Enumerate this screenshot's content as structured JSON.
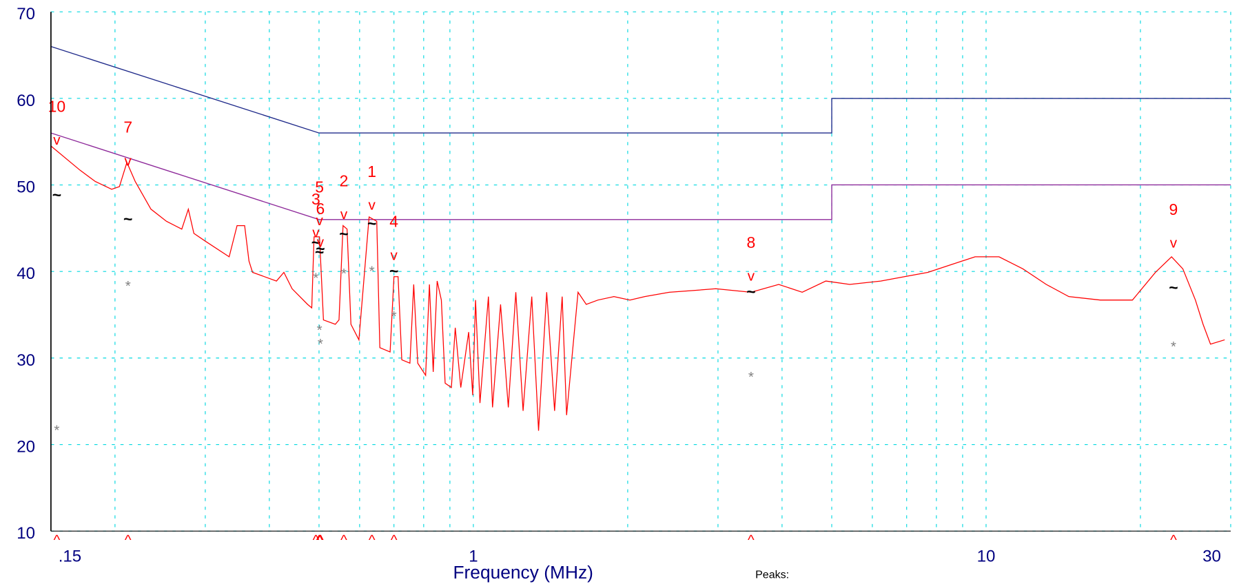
{
  "chart_data": {
    "type": "line",
    "x_label": "Frequency (MHz)",
    "peaks_title": "Peaks:",
    "log_x": true,
    "grid": true,
    "xlim": [
      0.15,
      30
    ],
    "ylim": [
      10,
      70
    ],
    "xticks": [
      {
        "value": 0.15,
        "label": ".15"
      },
      1,
      10,
      30
    ],
    "xgrid": [
      0.2,
      0.3,
      0.4,
      0.5,
      0.6,
      0.7,
      0.8,
      0.9,
      1,
      2,
      3,
      4,
      5,
      6,
      7,
      8,
      9,
      10,
      20,
      30
    ],
    "yticks": [
      10,
      20,
      30,
      40,
      50,
      60,
      70
    ],
    "series": [
      {
        "color": "#1f2a8a",
        "x": [
          0.15,
          0.5,
          5,
          5,
          30
        ],
        "values": [
          66,
          56,
          56,
          60,
          60
        ]
      },
      {
        "color": "#8e2a9a",
        "x": [
          0.15,
          0.5,
          5,
          5,
          30
        ],
        "values": [
          56,
          46,
          46,
          50,
          50
        ]
      },
      {
        "color": "#ff0000",
        "x": [
          0.15,
          0.171,
          0.183,
          0.197,
          0.204,
          0.211,
          0.219,
          0.235,
          0.252,
          0.27,
          0.278,
          0.285,
          0.3,
          0.334,
          0.346,
          0.358,
          0.365,
          0.371,
          0.413,
          0.427,
          0.443,
          0.475,
          0.484,
          0.489,
          0.501,
          0.51,
          0.538,
          0.547,
          0.557,
          0.567,
          0.577,
          0.598,
          0.626,
          0.648,
          0.657,
          0.688,
          0.7,
          0.713,
          0.725,
          0.752,
          0.765,
          0.779,
          0.807,
          0.821,
          0.835,
          0.85,
          0.866,
          0.881,
          0.906,
          0.922,
          0.945,
          0.979,
          0.997,
          1.01,
          1.03,
          1.07,
          1.09,
          1.13,
          1.17,
          1.21,
          1.25,
          1.3,
          1.34,
          1.39,
          1.44,
          1.49,
          1.52,
          1.6,
          1.66,
          1.75,
          1.88,
          2.02,
          2.16,
          2.41,
          2.68,
          2.97,
          3.48,
          3.94,
          4.38,
          4.87,
          5.42,
          6.23,
          6.93,
          7.7,
          8.56,
          9.52,
          10.6,
          11.8,
          13.1,
          14.5,
          16.7,
          19.3,
          21.4,
          23,
          24.2,
          25.6,
          26.5,
          27.4,
          29.2
        ],
        "values": [
          54.5,
          51.7,
          50.4,
          49.5,
          49.8,
          52.6,
          50.4,
          47.2,
          45.8,
          44.9,
          47.2,
          44.4,
          43.5,
          41.7,
          45.3,
          45.3,
          41.2,
          39.9,
          38.9,
          39.9,
          38.0,
          36.2,
          35.8,
          44.0,
          44.0,
          34.4,
          33.9,
          34.4,
          45.3,
          44.9,
          33.9,
          32.1,
          46.3,
          45.8,
          31.2,
          30.7,
          39.4,
          39.4,
          29.8,
          29.4,
          38.5,
          29.4,
          28.0,
          38.5,
          28.4,
          38.9,
          36.7,
          27.1,
          26.6,
          33.5,
          26.6,
          33.0,
          25.7,
          36.7,
          24.8,
          37.1,
          24.3,
          36.2,
          24.3,
          37.6,
          23.9,
          37.1,
          21.6,
          37.6,
          23.9,
          37.1,
          23.4,
          37.6,
          36.2,
          36.7,
          37.1,
          36.7,
          37.1,
          37.6,
          37.8,
          38.0,
          37.6,
          38.5,
          37.6,
          38.9,
          38.5,
          38.9,
          39.4,
          39.9,
          40.8,
          41.7,
          41.7,
          40.3,
          38.5,
          37.1,
          36.7,
          36.7,
          39.9,
          41.7,
          40.3,
          36.7,
          33.9,
          31.6,
          32.1
        ]
      }
    ],
    "marker_symbols": {
      "peak": "v",
      "qp": "~",
      "avg": "*",
      "axis": "^"
    },
    "peaks": {
      "labels": [
        "1",
        "2",
        "3",
        "4",
        "5",
        "6",
        "7",
        "8",
        "9",
        "10"
      ],
      "x": [
        0.634,
        0.559,
        0.493,
        0.7,
        0.501,
        0.503,
        0.212,
        3.48,
        23.2,
        0.154
      ],
      "peak": [
        47.4,
        46.3,
        44.2,
        41.6,
        45.6,
        43.1,
        52.5,
        39.2,
        43.0,
        54.9
      ],
      "qp": [
        45.4,
        44.2,
        43.2,
        39.9,
        42.1,
        42.5,
        45.9,
        37.5,
        38.0,
        48.7
      ],
      "avg": [
        40.3,
        40.0,
        39.5,
        35.1,
        33.5,
        31.9,
        38.6,
        28.1,
        31.6,
        21.9
      ]
    },
    "colors": {
      "peak": "#ff0000",
      "qp": "#000000",
      "avg": "#808080"
    }
  }
}
